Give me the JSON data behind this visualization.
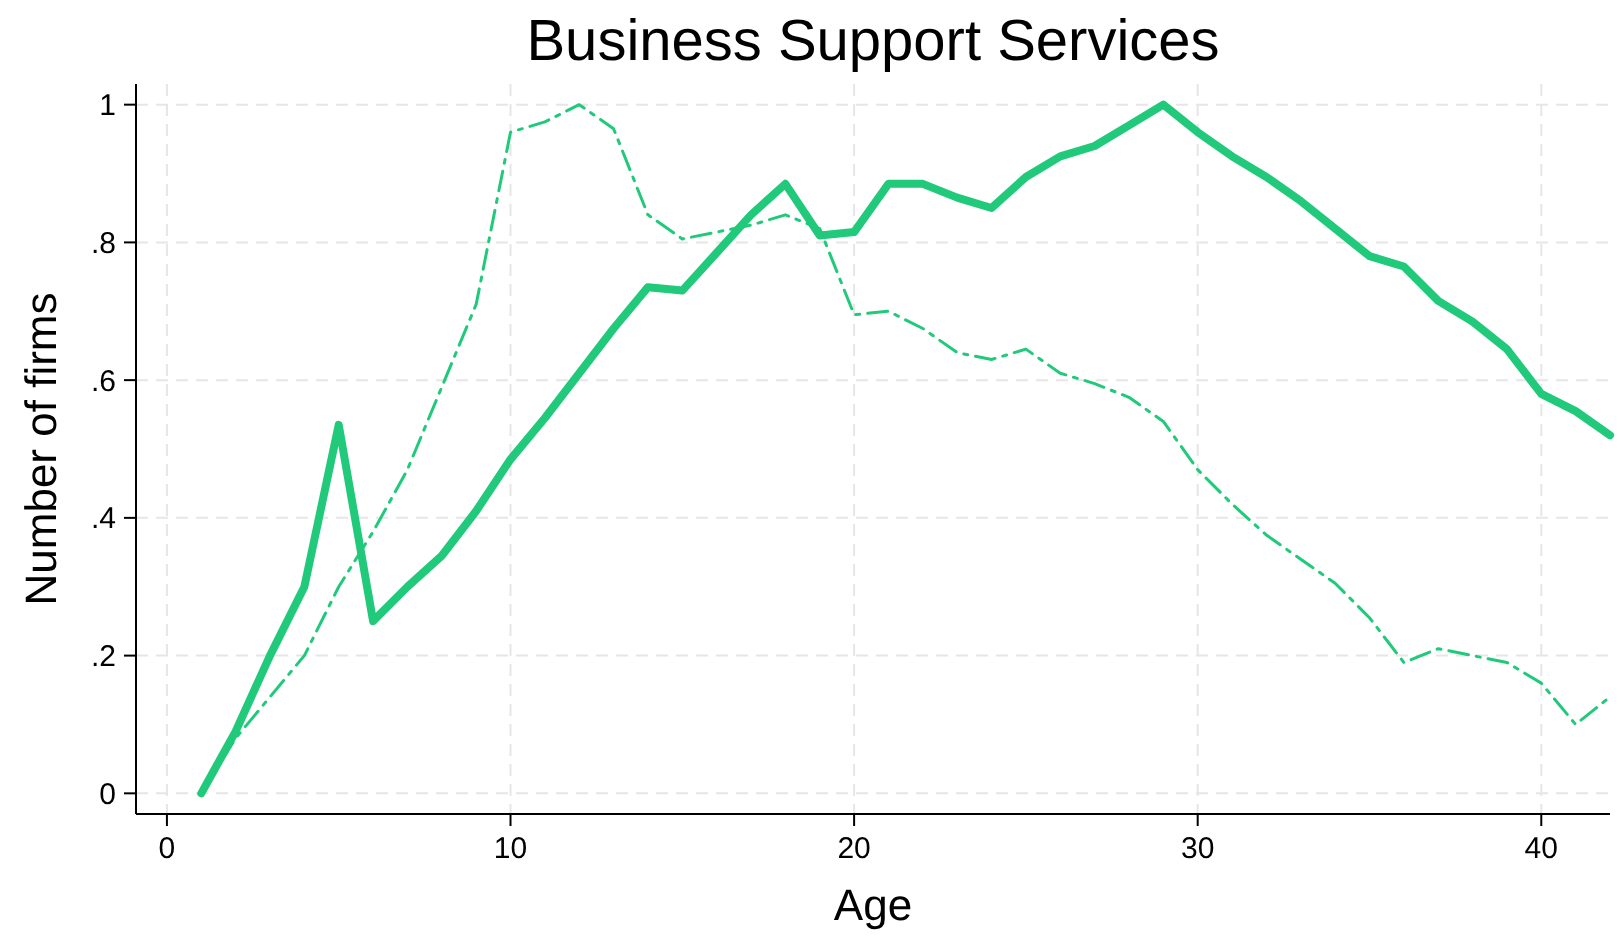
{
  "chart_data": {
    "type": "line",
    "title": "Business Support Services",
    "xlabel": "Age",
    "ylabel": "Number of firms",
    "xlim": [
      -0.9,
      42
    ],
    "xticks": [
      0,
      10,
      20,
      30,
      40
    ],
    "ylim": [
      -0.03,
      1.03
    ],
    "yticks": [
      0,
      {
        "value": 0.2,
        "label": ".2"
      },
      {
        "value": 0.4,
        "label": ".4"
      },
      {
        "value": 0.6,
        "label": ".6"
      },
      {
        "value": 0.8,
        "label": ".8"
      },
      1
    ],
    "grid": true,
    "x": [
      1,
      2,
      3,
      4,
      5,
      6,
      7,
      8,
      9,
      10,
      11,
      12,
      13,
      14,
      15,
      16,
      17,
      18,
      19,
      20,
      21,
      22,
      23,
      24,
      25,
      26,
      27,
      28,
      29,
      30,
      31,
      32,
      33,
      34,
      35,
      36,
      37,
      38,
      39,
      40,
      41,
      42
    ],
    "series": [
      {
        "color": "#21c97b",
        "line_style": "solid",
        "values": [
          0,
          0.09,
          0.2,
          0.3,
          0.535,
          0.25,
          0.3,
          0.345,
          0.41,
          0.485,
          0.545,
          0.61,
          0.675,
          0.735,
          0.73,
          0.785,
          0.84,
          0.885,
          0.81,
          0.815,
          0.885,
          0.885,
          0.865,
          0.85,
          0.895,
          0.925,
          0.94,
          0.97,
          1.0,
          0.96,
          0.925,
          0.895,
          0.86,
          0.82,
          0.78,
          0.765,
          0.715,
          0.685,
          0.645,
          0.58,
          0.555,
          0.52
        ]
      },
      {
        "color": "#21c97b",
        "line_style": "dashed",
        "values": [
          0,
          0.08,
          0.14,
          0.2,
          0.3,
          0.38,
          0.47,
          0.59,
          0.71,
          0.96,
          0.975,
          1.0,
          0.965,
          0.84,
          0.805,
          0.815,
          0.825,
          0.84,
          0.82,
          0.695,
          0.7,
          0.675,
          0.64,
          0.63,
          0.645,
          0.61,
          0.595,
          0.575,
          0.54,
          0.47,
          0.42,
          0.375,
          0.34,
          0.305,
          0.255,
          0.19,
          0.21,
          0.2,
          0.19,
          0.16,
          0.1,
          0.14
        ]
      }
    ]
  }
}
